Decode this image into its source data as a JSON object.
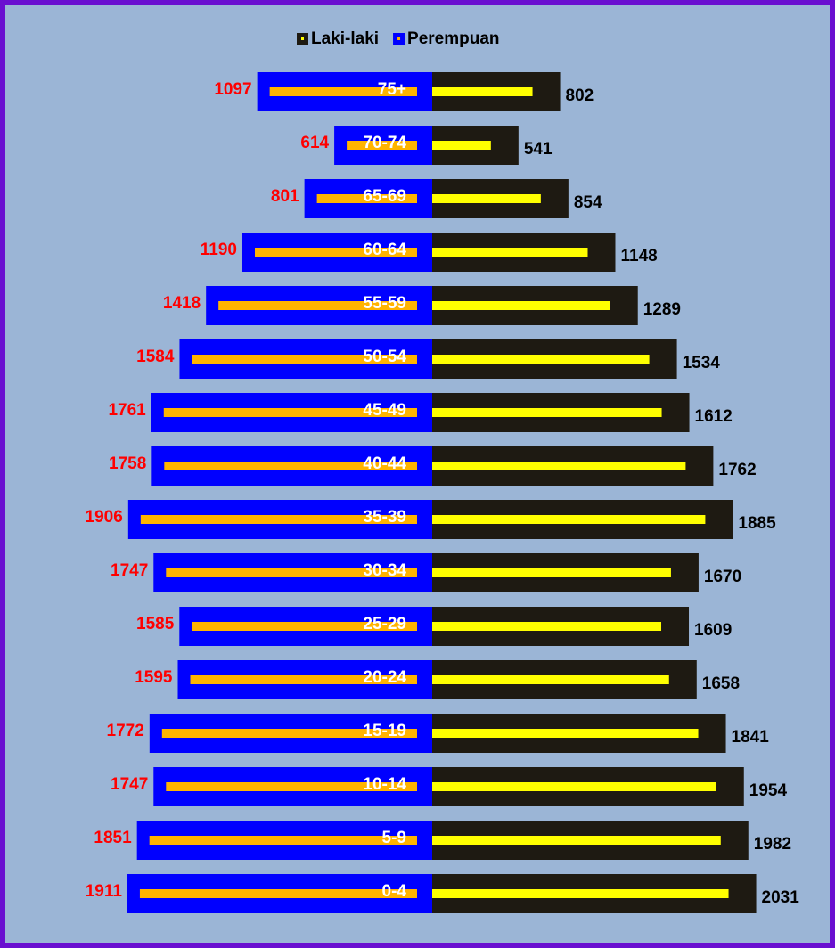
{
  "chart_data": {
    "type": "population-pyramid",
    "categories": [
      "75+",
      "70-74",
      "65-69",
      "60-64",
      "55-59",
      "50-54",
      "45-49",
      "40-44",
      "35-39",
      "30-34",
      "25-29",
      "20-24",
      "15-19",
      "10-14",
      "5-9",
      "0-4"
    ],
    "series": [
      {
        "name": "Laki-laki",
        "color": "#1e1a12",
        "inner_color": "#ffff00",
        "label_color": "#000000",
        "side": "right",
        "values": [
          802,
          541,
          854,
          1148,
          1289,
          1534,
          1612,
          1762,
          1885,
          1670,
          1609,
          1658,
          1841,
          1954,
          1982,
          2031
        ]
      },
      {
        "name": "Perempuan",
        "color": "#0000ff",
        "inner_color": "#ffb400",
        "label_color": "#ff0000",
        "side": "left",
        "values": [
          1097,
          614,
          801,
          1190,
          1418,
          1584,
          1761,
          1758,
          1906,
          1747,
          1585,
          1595,
          1772,
          1747,
          1851,
          1911
        ]
      }
    ],
    "legend": "top"
  }
}
